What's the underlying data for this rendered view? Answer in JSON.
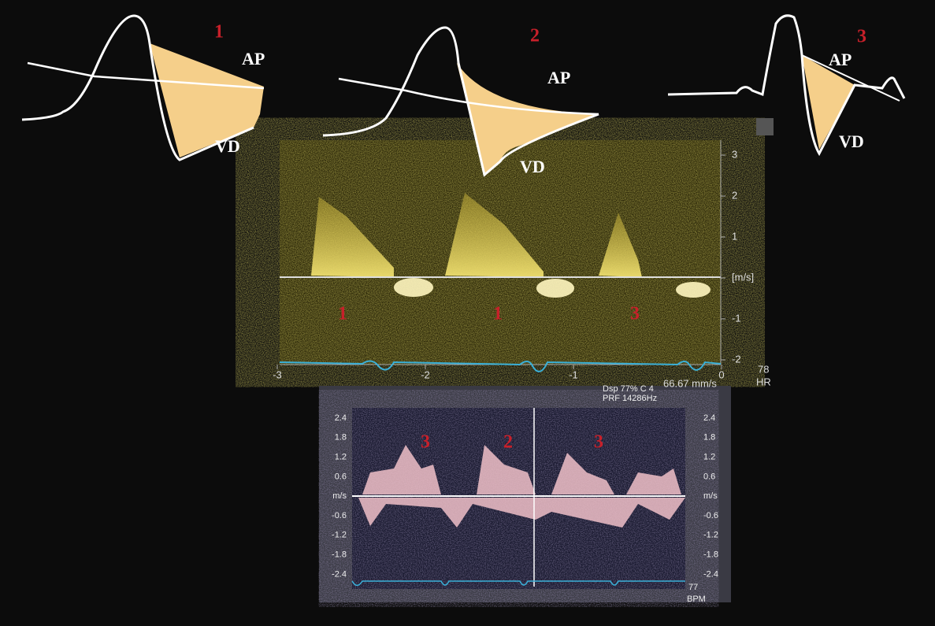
{
  "schematics": [
    {
      "number": "1",
      "ap": "AP",
      "vd": "VD"
    },
    {
      "number": "2",
      "ap": "AP",
      "vd": "VD"
    },
    {
      "number": "3",
      "ap": "AP",
      "vd": "VD"
    }
  ],
  "upper_doppler": {
    "y_ticks": [
      "3",
      "2",
      "1",
      "[m/s]",
      "-1",
      "-2"
    ],
    "x_ticks": [
      "-3",
      "-2",
      "-1",
      "0"
    ],
    "hr_value": "78",
    "hr_label": "HR",
    "sweep": "66.67 mm/s",
    "beat_labels": [
      "1",
      "1",
      "3"
    ]
  },
  "lower_doppler": {
    "settings": [
      "Dsp 77% C 4",
      "PRF 14286Hz"
    ],
    "y_ticks": [
      "2.4",
      "1.8",
      "1.2",
      "0.6",
      "m/s",
      "-0.6",
      "-1.2",
      "-1.8",
      "-2.4"
    ],
    "bpm_value": "77",
    "bpm_label": "BPM",
    "beat_labels": [
      "3",
      "2",
      "3"
    ]
  }
}
